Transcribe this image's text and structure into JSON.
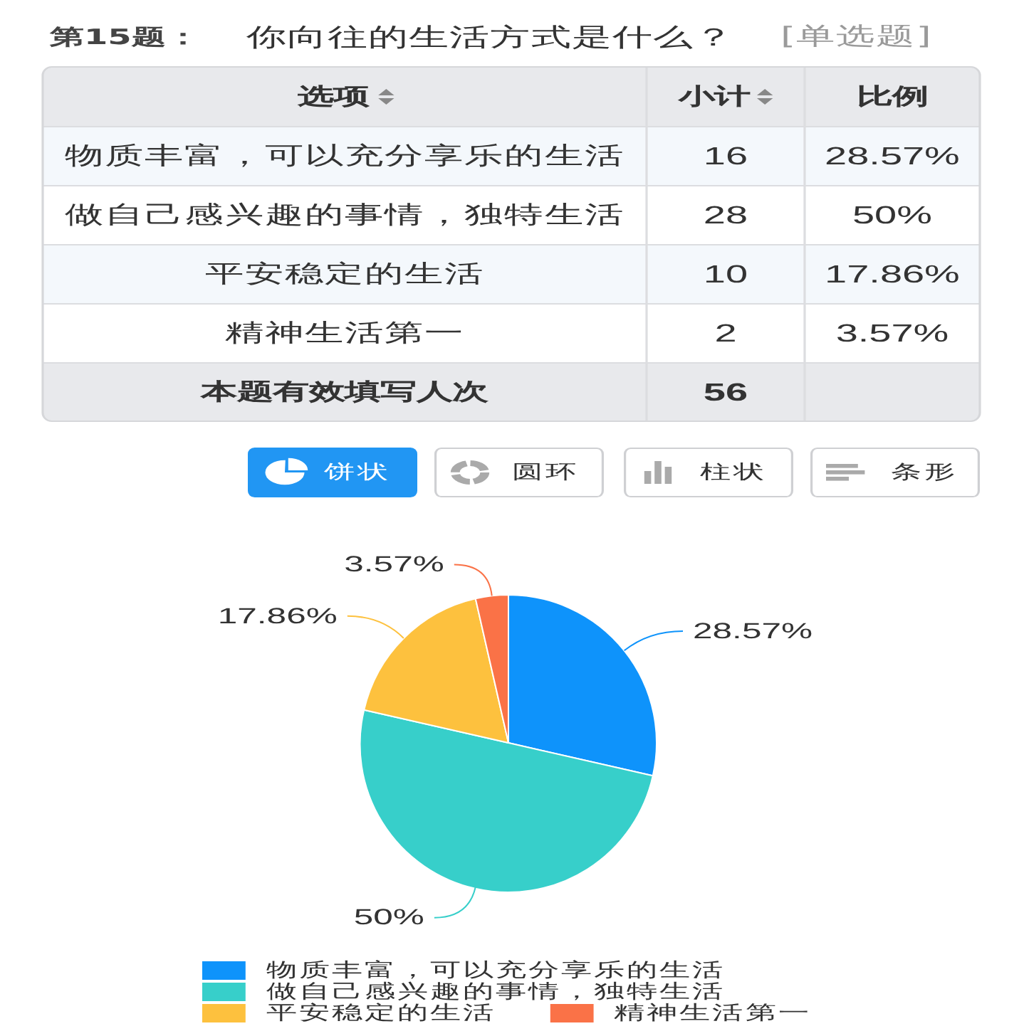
{
  "chart_data": [
    {
      "type": "other",
      "title": "第15题：",
      "subtitle": "你向往的生活方式是什么？",
      "annotations": [
        "[单选题]",
        "选项",
        "本题有效填写人次",
        "56"
      ],
      "categories": [
        "物质丰富，可以充分享乐的生活",
        "做自己感兴趣的事情，独特生活",
        "平安稳定的生活",
        "精神生活第一"
      ],
      "series": [
        {
          "name": "小计",
          "values": [
            16,
            28,
            10,
            2
          ]
        },
        {
          "name": "比例",
          "values": [
            28.57,
            50,
            17.86,
            3.57
          ],
          "value_labels": [
            "28.57%",
            "50%",
            "17.86%",
            "3.57%"
          ]
        }
      ],
      "data_labels": true
    },
    {
      "type": "pie",
      "annotations": [
        "饼状",
        "圆环",
        "柱状",
        "条形"
      ],
      "categories": [
        "物质丰富，可以充分享乐的生活",
        "做自己感兴趣的事情，独特生活",
        "平安稳定的生活",
        "精神生活第一"
      ],
      "values": [
        28.57,
        50,
        17.86,
        3.57
      ],
      "value_labels": [
        "28.57%",
        "50%",
        "17.86%",
        "3.57%"
      ],
      "colors": [
        "#0e93fb",
        "#37cfca",
        "#fdc13e",
        "#fa7247"
      ],
      "legend": "bottom"
    }
  ]
}
